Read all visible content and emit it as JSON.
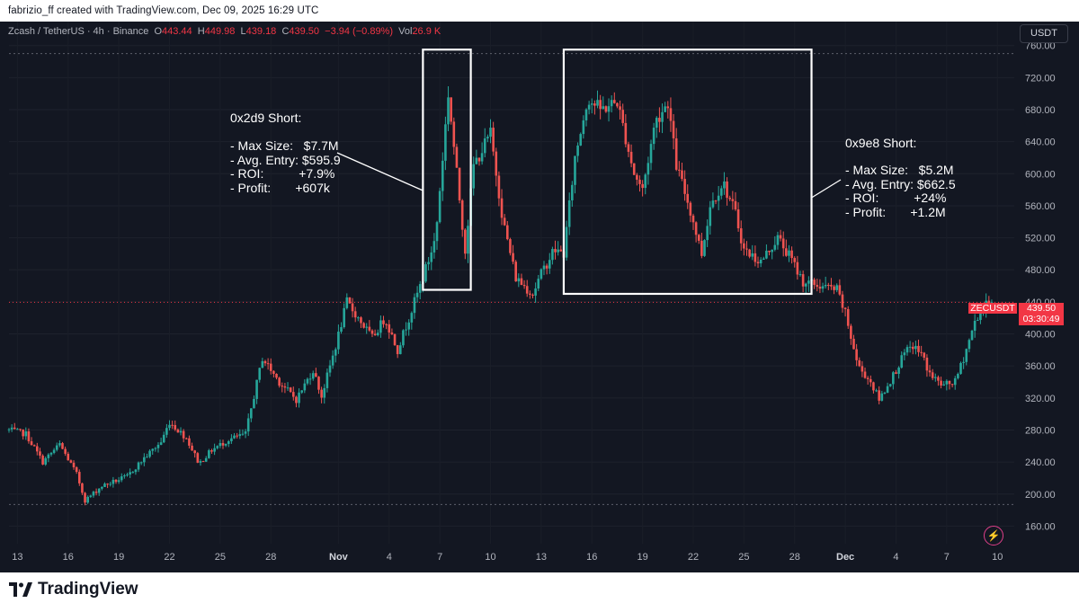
{
  "header": {
    "attribution": "fabrizio_ff created with TradingView.com, Dec 09, 2025 16:29 UTC"
  },
  "symbol": {
    "name": "Zcash / TetherUS · 4h · Binance",
    "open_label": "O",
    "open": "443.44",
    "high_label": "H",
    "high": "449.98",
    "low_label": "L",
    "low": "439.18",
    "close_label": "C",
    "close": "439.50",
    "change": "−3.94 (−0.89%)",
    "vol_label": "Vol",
    "vol": "26.9 K",
    "currency": "USDT"
  },
  "annotations": {
    "left": {
      "title": "0x2d9 Short:",
      "lines": [
        "- Max Size:   $7.7M",
        "- Avg. Entry: $595.9",
        "- ROI:          +7.9%",
        "- Profit:       +607k"
      ]
    },
    "right": {
      "title": "0x9e8 Short:",
      "lines": [
        "- Max Size:   $5.2M",
        "- Avg. Entry: $662.5",
        "- ROI:          +24%",
        "- Profit:       +1.2M"
      ]
    }
  },
  "price_label": {
    "symbol": "ZECUSDT",
    "price": "439.50",
    "countdown": "03:30:49"
  },
  "footer": {
    "logo": "TradingView"
  },
  "colors": {
    "up": "#26a69a",
    "down": "#ef5350",
    "background": "#131722",
    "last_price": "#f23645"
  },
  "chart_data": {
    "type": "candlestick",
    "title": "Zcash / TetherUS · 4h · Binance",
    "xlabel": "",
    "ylabel": "",
    "y_ticks": [
      160,
      200,
      240,
      280,
      320,
      360,
      400,
      440,
      480,
      520,
      560,
      600,
      640,
      680,
      720,
      760
    ],
    "ylim": [
      138,
      790
    ],
    "x_ticks": [
      "13",
      "16",
      "19",
      "22",
      "25",
      "28",
      "Nov",
      "4",
      "7",
      "10",
      "13",
      "16",
      "19",
      "22",
      "25",
      "28",
      "Dec",
      "4",
      "7",
      "10"
    ],
    "x_tick_dates": [
      "2025-10-13",
      "2025-10-16",
      "2025-10-19",
      "2025-10-22",
      "2025-10-25",
      "2025-10-28",
      "2025-11-01",
      "2025-11-04",
      "2025-11-07",
      "2025-11-10",
      "2025-11-13",
      "2025-11-16",
      "2025-11-19",
      "2025-11-22",
      "2025-11-25",
      "2025-11-28",
      "2025-12-01",
      "2025-12-04",
      "2025-12-07",
      "2025-12-10"
    ],
    "xlim": [
      "2025-10-12T12:00",
      "2025-12-11T00:00"
    ],
    "horizontal_lines": [
      750,
      187
    ],
    "last_price": 439.5,
    "highlight_boxes": [
      {
        "from": "2025-11-06T00:00",
        "to": "2025-11-08T20:00",
        "low": 455,
        "high": 755
      },
      {
        "from": "2025-11-14T08:00",
        "to": "2025-11-29T00:00",
        "low": 450,
        "high": 755
      }
    ],
    "path_points": [
      [
        "2025-10-12T12:00",
        280
      ],
      [
        "2025-10-13T12:00",
        275
      ],
      [
        "2025-10-14T12:00",
        240
      ],
      [
        "2025-10-15T12:00",
        262
      ],
      [
        "2025-10-16T12:00",
        225
      ],
      [
        "2025-10-17T00:00",
        192
      ],
      [
        "2025-10-18T00:00",
        210
      ],
      [
        "2025-10-19T12:00",
        222
      ],
      [
        "2025-10-20T12:00",
        245
      ],
      [
        "2025-10-21T12:00",
        265
      ],
      [
        "2025-10-22T00:00",
        290
      ],
      [
        "2025-10-23T00:00",
        270
      ],
      [
        "2025-10-23T18:00",
        238
      ],
      [
        "2025-10-24T12:00",
        255
      ],
      [
        "2025-10-25T12:00",
        268
      ],
      [
        "2025-10-26T12:00",
        275
      ],
      [
        "2025-10-27T12:00",
        370
      ],
      [
        "2025-10-28T12:00",
        340
      ],
      [
        "2025-10-29T12:00",
        318
      ],
      [
        "2025-10-30T12:00",
        355
      ],
      [
        "2025-10-31T00:00",
        322
      ],
      [
        "2025-10-31T20:00",
        385
      ],
      [
        "2025-11-01T12:00",
        440
      ],
      [
        "2025-11-02T12:00",
        410
      ],
      [
        "2025-11-03T00:00",
        395
      ],
      [
        "2025-11-03T18:00",
        420
      ],
      [
        "2025-11-04T12:00",
        380
      ],
      [
        "2025-11-05T12:00",
        440
      ],
      [
        "2025-11-06T00:00",
        470
      ],
      [
        "2025-11-06T18:00",
        520
      ],
      [
        "2025-11-07T12:00",
        700
      ],
      [
        "2025-11-08T00:00",
        600
      ],
      [
        "2025-11-08T12:00",
        505
      ],
      [
        "2025-11-09T00:00",
        610
      ],
      [
        "2025-11-10T00:00",
        650
      ],
      [
        "2025-11-10T18:00",
        540
      ],
      [
        "2025-11-11T12:00",
        470
      ],
      [
        "2025-11-12T12:00",
        450
      ],
      [
        "2025-11-13T00:00",
        475
      ],
      [
        "2025-11-13T18:00",
        505
      ],
      [
        "2025-11-14T08:00",
        500
      ],
      [
        "2025-11-15T00:00",
        620
      ],
      [
        "2025-11-15T18:00",
        695
      ],
      [
        "2025-11-16T12:00",
        680
      ],
      [
        "2025-11-17T12:00",
        690
      ],
      [
        "2025-11-18T12:00",
        600
      ],
      [
        "2025-11-19T00:00",
        580
      ],
      [
        "2025-11-19T18:00",
        665
      ],
      [
        "2025-11-20T12:00",
        690
      ],
      [
        "2025-11-21T00:00",
        610
      ],
      [
        "2025-11-21T18:00",
        560
      ],
      [
        "2025-11-22T12:00",
        500
      ],
      [
        "2025-11-23T00:00",
        560
      ],
      [
        "2025-11-23T18:00",
        590
      ],
      [
        "2025-11-24T12:00",
        550
      ],
      [
        "2025-11-25T00:00",
        505
      ],
      [
        "2025-11-26T00:00",
        490
      ],
      [
        "2025-11-27T00:00",
        520
      ],
      [
        "2025-11-27T18:00",
        495
      ],
      [
        "2025-11-28T12:00",
        465
      ],
      [
        "2025-11-29T12:00",
        460
      ],
      [
        "2025-11-30T12:00",
        455
      ],
      [
        "2025-12-01T00:00",
        425
      ],
      [
        "2025-12-01T18:00",
        360
      ],
      [
        "2025-12-02T12:00",
        340
      ],
      [
        "2025-12-03T00:00",
        318
      ],
      [
        "2025-12-03T18:00",
        345
      ],
      [
        "2025-12-04T12:00",
        375
      ],
      [
        "2025-12-05T00:00",
        385
      ],
      [
        "2025-12-05T12:00",
        375
      ],
      [
        "2025-12-06T00:00",
        350
      ],
      [
        "2025-12-06T18:00",
        335
      ],
      [
        "2025-12-07T12:00",
        340
      ],
      [
        "2025-12-08T00:00",
        370
      ],
      [
        "2025-12-08T18:00",
        420
      ],
      [
        "2025-12-09T12:00",
        440
      ],
      [
        "2025-12-09T16:00",
        439.5
      ]
    ]
  }
}
